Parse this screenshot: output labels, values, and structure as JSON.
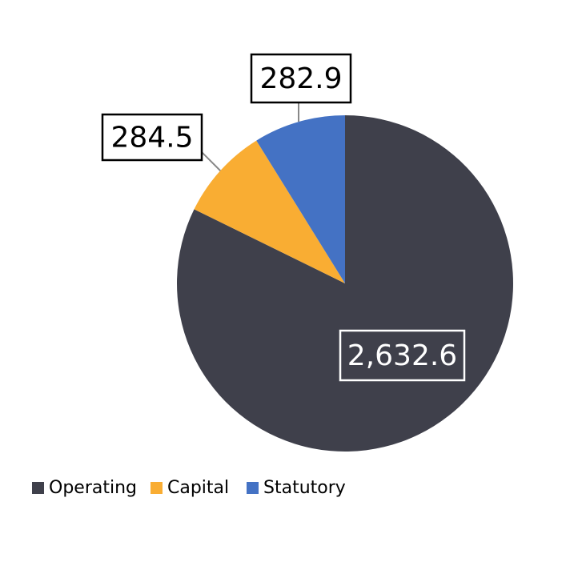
{
  "chart_data": {
    "type": "pie",
    "categories": [
      "Operating",
      "Capital",
      "Statutory"
    ],
    "values": [
      2632.6,
      284.5,
      282.9
    ],
    "value_labels": [
      "2,632.6",
      "284.5",
      "282.9"
    ],
    "colors": [
      "#3f404b",
      "#f9ad33",
      "#4472c4"
    ],
    "legend": "bottom"
  }
}
